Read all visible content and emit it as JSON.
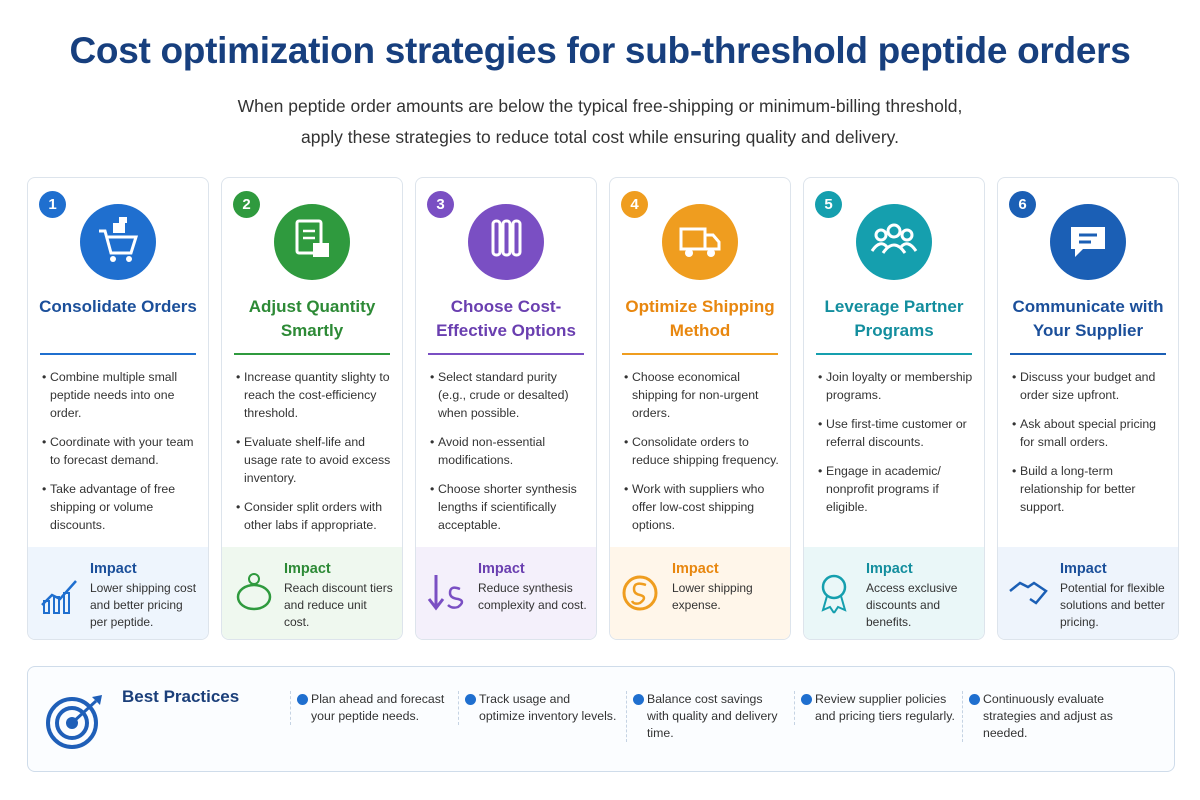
{
  "header": {
    "title": "Cost optimization strategies for sub-threshold peptide orders",
    "subtitle": [
      "When peptide order amounts are below the typical free-shipping or minimum-billing threshold,",
      "apply these strategies to reduce total cost while ensuring quality and delivery."
    ]
  },
  "cards": [
    {
      "number": 1,
      "title": "Consolidate Orders",
      "bullets": [
        "Combine multiple small peptide needs into one order.",
        "Coordinate with your team to forecast demand.",
        "Take advantage of free shipping or volume discounts."
      ],
      "impact_label": "Impact",
      "impact": "Lower shipping cost and better pricing per peptide."
    },
    {
      "number": 2,
      "title": "Adjust Quantity Smartly",
      "bullets": [
        "Increase quantity slighty to reach the cost-efficiency threshold.",
        "Evaluate shelf-life and usage rate to avoid excess inventory.",
        "Consider split orders with other labs if appropriate."
      ],
      "impact_label": "Impact",
      "impact": "Reach discount tiers and reduce unit cost."
    },
    {
      "number": 3,
      "title": "Choose Cost-Effective Options",
      "bullets": [
        "Select standard purity (e.g., crude or desalted) when possible.",
        "Avoid non-essential modifications.",
        "Choose shorter synthesis lengths if scientifically acceptable."
      ],
      "impact_label": "Impact",
      "impact": "Reduce synthesis complexity and cost."
    },
    {
      "number": 4,
      "title": "Optimize Shipping Method",
      "bullets": [
        "Choose economical shipping for non-urgent orders.",
        "Consolidate orders to reduce shipping frequency.",
        "Work with suppliers who offer low-cost shipping options."
      ],
      "impact_label": "Impact",
      "impact": "Lower shipping expense."
    },
    {
      "number": 5,
      "title": "Leverage Partner Programs",
      "bullets": [
        "Join loyalty or membership programs.",
        "Use first-time customer or referral discounts.",
        "Engage in academic/ nonprofit programs if eligible."
      ],
      "impact_label": "Impact",
      "impact": "Access exclusive discounts and benefits."
    },
    {
      "number": 6,
      "title": "Communicate with Your Supplier",
      "bullets": [
        "Discuss your budget and order size upfront.",
        "Ask about special pricing for small orders.",
        "Build a long-term relationship for better support."
      ],
      "impact_label": "Impact",
      "impact": "Potential for flexible solutions and better pricing."
    }
  ],
  "best_practices": {
    "title": "Best Practices",
    "items": [
      "Plan ahead and forecast your peptide needs.",
      "Track usage and optimize inventory levels.",
      "Balance cost savings with quality and delivery time.",
      "Review supplier policies and pricing tiers regularly.",
      "Continuously evaluate strategies and adjust as needed."
    ]
  }
}
